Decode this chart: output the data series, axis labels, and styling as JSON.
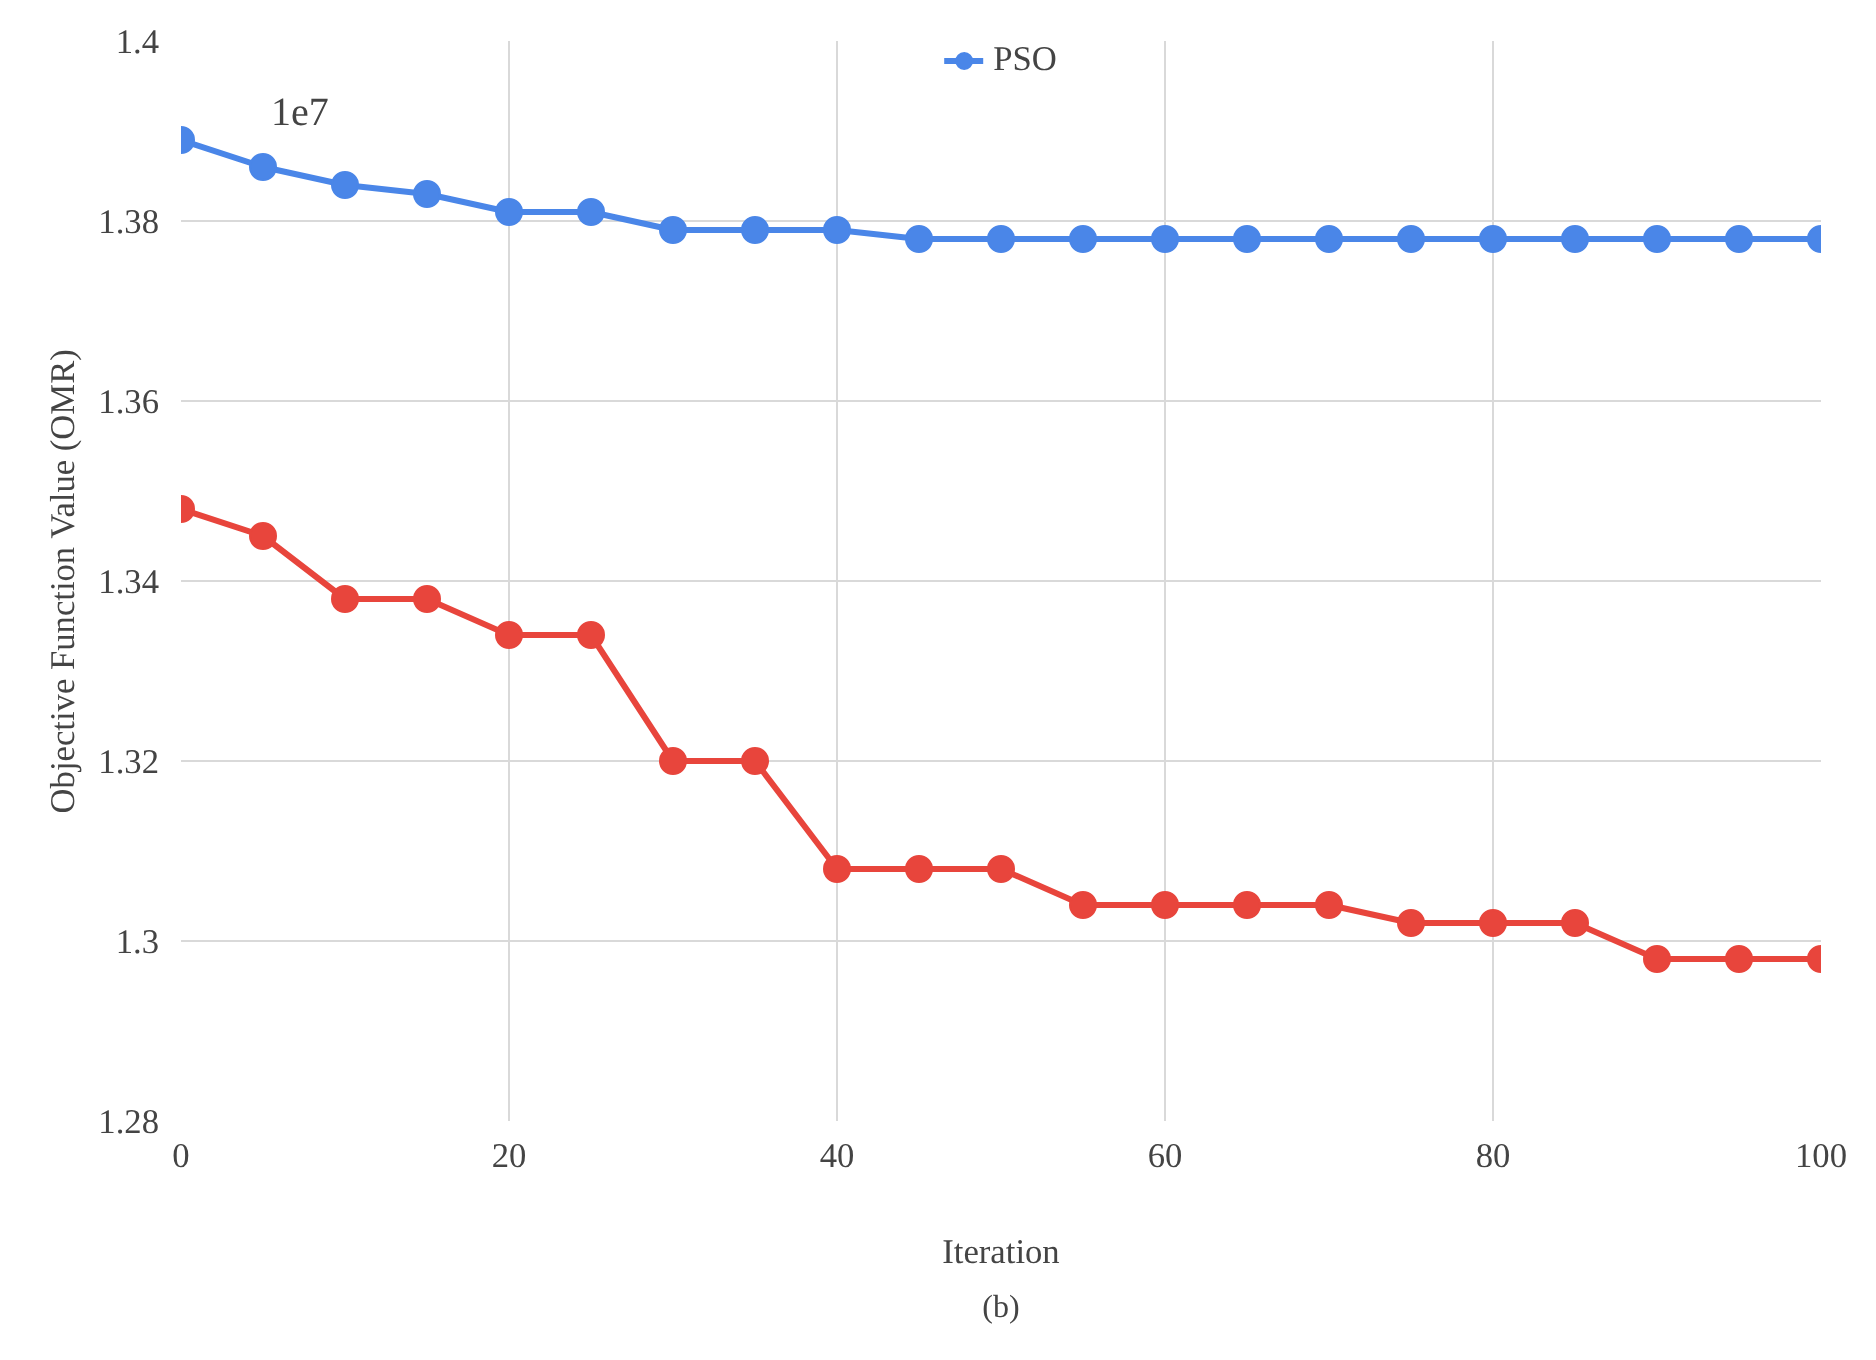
{
  "chart_data": {
    "type": "line",
    "xlabel": "Iteration",
    "ylabel": "Objective Function Value (OMR)",
    "annotations": [
      "1e7",
      "(b)"
    ],
    "x": [
      0,
      5,
      10,
      15,
      20,
      25,
      30,
      35,
      40,
      45,
      50,
      55,
      60,
      65,
      70,
      75,
      80,
      85,
      90,
      95,
      100
    ],
    "series": [
      {
        "name": "PSO",
        "color": "#4a86e8",
        "values": [
          1.389,
          1.386,
          1.384,
          1.383,
          1.381,
          1.381,
          1.379,
          1.379,
          1.379,
          1.378,
          1.378,
          1.378,
          1.378,
          1.378,
          1.378,
          1.378,
          1.378,
          1.378,
          1.378,
          1.378,
          1.378
        ]
      },
      {
        "color": "#e8453c",
        "values": [
          1.348,
          1.345,
          1.338,
          1.338,
          1.334,
          1.334,
          1.32,
          1.32,
          1.308,
          1.308,
          1.308,
          1.304,
          1.304,
          1.304,
          1.304,
          1.302,
          1.302,
          1.302,
          1.298,
          1.298,
          1.298
        ]
      }
    ],
    "xlim": [
      0,
      100
    ],
    "ylim": [
      1.28,
      1.4
    ],
    "xticks": [
      0,
      20,
      40,
      60,
      80,
      100
    ],
    "yticks": [
      1.28,
      1.3,
      1.32,
      1.34,
      1.36,
      1.38,
      1.4
    ],
    "grid": true,
    "legend": "top",
    "marker": "circle",
    "line_style": "solid"
  }
}
